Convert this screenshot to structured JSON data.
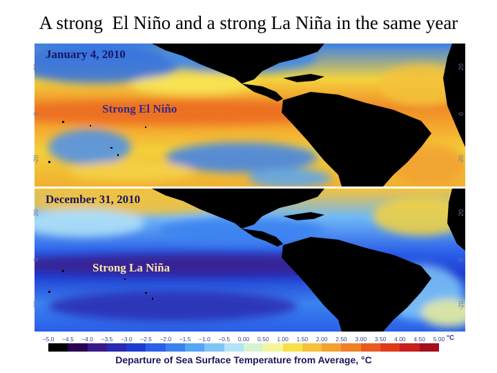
{
  "title": "A strong  El Niño and a strong La Niña in the same year",
  "panels": [
    {
      "date": "January 4, 2010",
      "event": "Strong El Niño",
      "lat_ticks": [
        "20",
        "0",
        "-20"
      ]
    },
    {
      "date": "December 31, 2010",
      "event": "Strong La Niña",
      "lat_ticks": [
        "20",
        "0",
        "-20"
      ]
    }
  ],
  "color_scale": {
    "ticks": [
      "−5.0",
      "−4.5",
      "−4.0",
      "−3.5",
      "−3.0",
      "−2.5",
      "−2.0",
      "−1.5",
      "−1.0",
      "−0.5",
      "0.00",
      "0.50",
      "1.00",
      "1.50",
      "2.00",
      "2.50",
      "3.00",
      "3.50",
      "4.00",
      "4.50",
      "5.00"
    ],
    "unit": "°C",
    "caption": "Departure of Sea Surface Temperature from Average, °C",
    "colors": [
      "#000000",
      "#2a0050",
      "#3a1a8a",
      "#2a2ab0",
      "#1f3cd0",
      "#2a5fe8",
      "#3b82f0",
      "#55a6f5",
      "#7fc4f7",
      "#b3e3f7",
      "#d6f3d0",
      "#f3f79a",
      "#f5e24a",
      "#f5c23a",
      "#f2a130",
      "#ef8128",
      "#ea5a20",
      "#e03a1a",
      "#c81e1e",
      "#a50e1e"
    ]
  }
}
